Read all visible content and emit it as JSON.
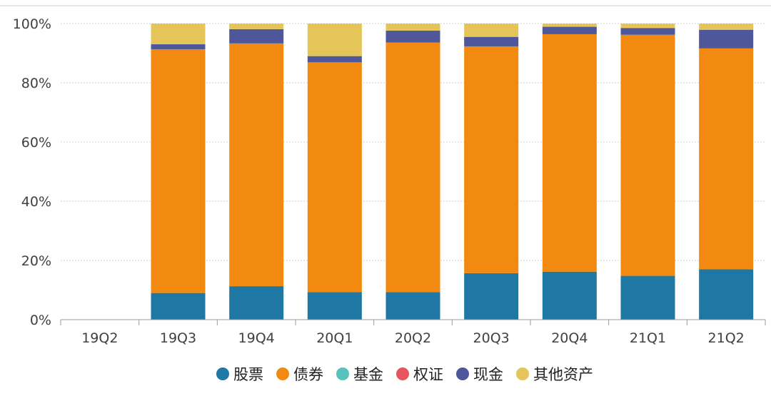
{
  "chart_data": {
    "type": "bar",
    "stacked": true,
    "percent": true,
    "categories": [
      "19Q2",
      "19Q3",
      "19Q4",
      "20Q1",
      "20Q2",
      "20Q3",
      "20Q4",
      "21Q1",
      "21Q2"
    ],
    "ylim": [
      0,
      100
    ],
    "yticks": [
      "0%",
      "20%",
      "40%",
      "60%",
      "80%",
      "100%"
    ],
    "grid": true,
    "legend_position": "bottom",
    "series": [
      {
        "name": "股票",
        "color": "#1f77a4",
        "values": [
          0,
          9,
          11.3,
          9.3,
          9.3,
          15.7,
          16.2,
          14.8,
          17
        ]
      },
      {
        "name": "债券",
        "color": "#f28a12",
        "values": [
          0,
          82.3,
          82,
          77.6,
          84.3,
          76.6,
          80.2,
          81.4,
          74.6
        ]
      },
      {
        "name": "基金",
        "color": "#5bc1bd",
        "values": [
          0,
          0,
          0,
          0,
          0,
          0,
          0,
          0,
          0
        ]
      },
      {
        "name": "权证",
        "color": "#e8545c",
        "values": [
          0,
          0,
          0,
          0,
          0,
          0,
          0,
          0,
          0
        ]
      },
      {
        "name": "现金",
        "color": "#4e5799",
        "values": [
          0,
          1.7,
          4.8,
          2.1,
          4,
          3.2,
          2.5,
          2.3,
          6.3
        ]
      },
      {
        "name": "其他资产",
        "color": "#e5c55a",
        "values": [
          0,
          7,
          1.9,
          11,
          2.4,
          4.5,
          1.1,
          1.5,
          2.1
        ]
      }
    ]
  }
}
